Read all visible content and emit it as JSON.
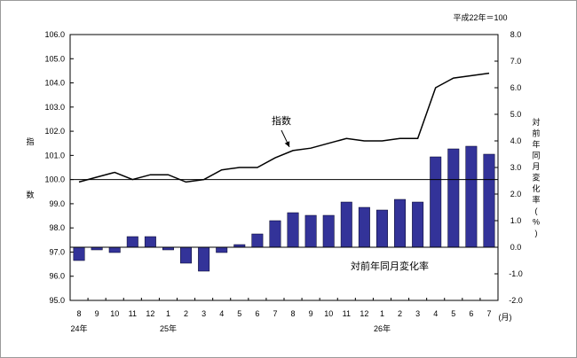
{
  "chart_data": {
    "type": "bar+line",
    "base_note": "平成22年＝100",
    "unit_label": "(月)",
    "left_axis": {
      "label_chars": [
        "指",
        "数"
      ],
      "ylim": [
        95.0,
        106.0
      ],
      "ticks": [
        "95.0",
        "96.0",
        "97.0",
        "98.0",
        "99.0",
        "100.0",
        "101.0",
        "102.0",
        "103.0",
        "104.0",
        "105.0",
        "106.0"
      ],
      "reference_line": 100.0
    },
    "right_axis": {
      "label_chars": [
        "対",
        "前",
        "年",
        "同",
        "月",
        "変",
        "化",
        "率",
        "(",
        "%",
        ")"
      ],
      "ylim": [
        -2.0,
        8.0
      ],
      "ticks": [
        "-2.0",
        "-1.0",
        "0.0",
        "1.0",
        "2.0",
        "3.0",
        "4.0",
        "5.0",
        "6.0",
        "7.0",
        "8.0"
      ]
    },
    "categories": [
      "8",
      "9",
      "10",
      "11",
      "12",
      "1",
      "2",
      "3",
      "4",
      "5",
      "6",
      "7",
      "8",
      "9",
      "10",
      "11",
      "12",
      "1",
      "2",
      "3",
      "4",
      "5",
      "6",
      "7"
    ],
    "year_labels": [
      {
        "text": "24年",
        "index": 0
      },
      {
        "text": "25年",
        "index": 5
      },
      {
        "text": "26年",
        "index": 17
      }
    ],
    "series": [
      {
        "name": "指数",
        "type": "line",
        "axis": "left",
        "color": "#000000",
        "values": [
          99.9,
          100.1,
          100.3,
          100.0,
          100.2,
          100.2,
          99.9,
          100.0,
          100.4,
          100.5,
          100.5,
          100.9,
          101.2,
          101.3,
          101.5,
          101.7,
          101.6,
          101.6,
          101.7,
          101.7,
          103.8,
          104.2,
          104.3,
          104.4
        ]
      },
      {
        "name": "対前年同月変化率",
        "type": "bar",
        "axis": "right",
        "color": "#333399",
        "values": [
          -0.5,
          -0.1,
          -0.2,
          0.4,
          0.4,
          -0.1,
          -0.6,
          -0.9,
          -0.2,
          0.1,
          0.5,
          1.0,
          1.3,
          1.2,
          1.2,
          1.7,
          1.5,
          1.4,
          1.8,
          1.7,
          3.4,
          3.7,
          3.8,
          3.5
        ]
      }
    ],
    "annotations": [
      {
        "text": "指数",
        "target_series": "指数",
        "target_index": 12
      },
      {
        "text": "対前年同月変化率",
        "target_series": "対前年同月変化率"
      }
    ]
  }
}
